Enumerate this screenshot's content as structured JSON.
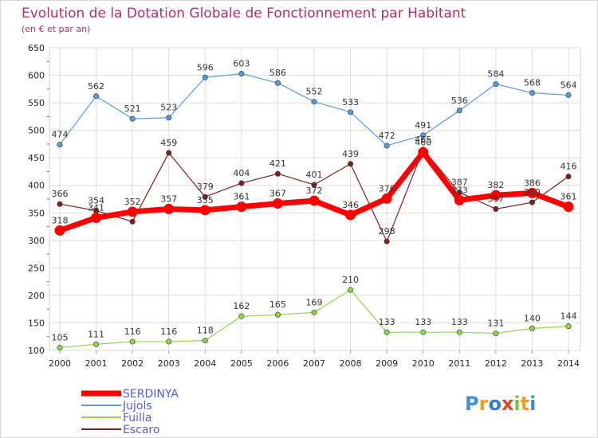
{
  "title": "Evolution de la Dotation Globale de Fonctionnement par Habitant",
  "subtitle": "(en € et par an)",
  "logo_text": "Proxiti",
  "chart_data": {
    "type": "line",
    "title": "Evolution de la Dotation Globale de Fonctionnement par Habitant",
    "subtitle": "(en € et par an)",
    "xlabel": "",
    "ylabel": "",
    "x": [
      "2000",
      "2001",
      "2002",
      "2003",
      "2004",
      "2005",
      "2006",
      "2007",
      "2008",
      "2009",
      "2010",
      "2011",
      "2012",
      "2013",
      "2014"
    ],
    "ylim": [
      100,
      650
    ],
    "yticks": [
      100,
      150,
      200,
      250,
      300,
      350,
      400,
      450,
      500,
      550,
      600,
      650
    ],
    "grid": true,
    "legend_position": "bottom-left",
    "series": [
      {
        "name": "SERDINYA",
        "color": "#ff0000",
        "values": [
          318,
          341,
          352,
          357,
          355,
          361,
          367,
          372,
          346,
          376,
          460,
          373,
          382,
          386,
          361
        ]
      },
      {
        "name": "Jujols",
        "color": "#5a9bd5",
        "values": [
          474,
          562,
          521,
          523,
          596,
          603,
          586,
          552,
          533,
          472,
          491,
          536,
          584,
          568,
          564
        ]
      },
      {
        "name": "Fuilla",
        "color": "#8fd64c",
        "values": [
          105,
          111,
          116,
          116,
          118,
          162,
          165,
          169,
          210,
          133,
          133,
          133,
          131,
          140,
          144
        ]
      },
      {
        "name": "Escaro",
        "color": "#7a2020",
        "values": [
          366,
          354,
          334,
          459,
          379,
          404,
          421,
          401,
          439,
          298,
          465,
          387,
          357,
          369,
          416
        ]
      }
    ],
    "data_labels": {
      "SERDINYA": [
        318,
        341,
        352,
        357,
        355,
        361,
        367,
        372,
        346,
        376,
        460,
        373,
        382,
        386,
        361
      ],
      "Jujols": [
        474,
        562,
        521,
        523,
        596,
        603,
        586,
        552,
        533,
        472,
        491,
        536,
        584,
        568,
        564
      ],
      "Fuilla": [
        105,
        111,
        116,
        116,
        118,
        162,
        165,
        169,
        210,
        133,
        133,
        133,
        131,
        140,
        144
      ],
      "Escaro": [
        366,
        354,
        null,
        459,
        379,
        404,
        421,
        401,
        439,
        298,
        465,
        387,
        357,
        369,
        416
      ]
    }
  }
}
